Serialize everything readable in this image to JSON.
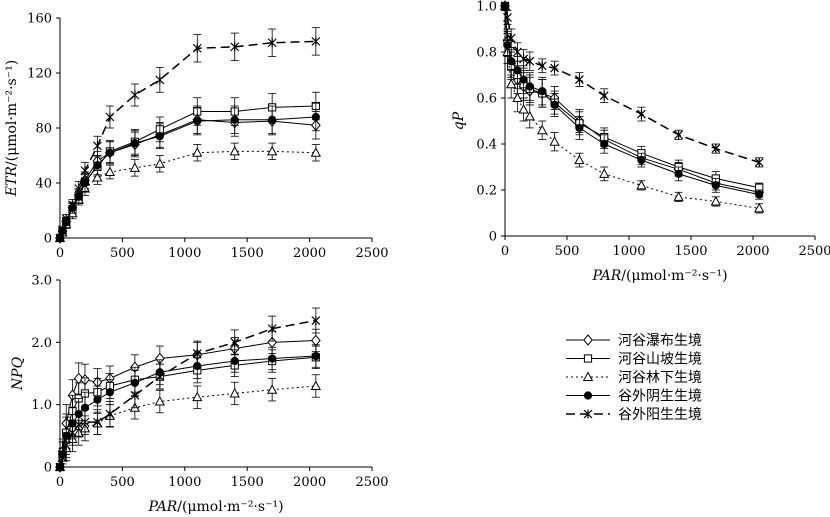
{
  "legend": {
    "items": [
      {
        "label": "河谷瀑布生境",
        "marker": "diamond-open",
        "dash": "solid"
      },
      {
        "label": "河谷山坡生境",
        "marker": "square-open",
        "dash": "solid"
      },
      {
        "label": "河谷林下生境",
        "marker": "triangle-open",
        "dash": "dotted"
      },
      {
        "label": "谷外阴生生境",
        "marker": "circle-filled",
        "dash": "solid"
      },
      {
        "label": "谷外阳生生境",
        "marker": "star",
        "dash": "dashed"
      }
    ]
  },
  "chart_data": [
    {
      "id": "etr",
      "type": "line",
      "title": "",
      "ylabel_italic": "ETR",
      "ylabel_unit": "/(μmol·m⁻²·s⁻¹)",
      "xlabel": "",
      "xlim": [
        0,
        2500
      ],
      "ylim": [
        0,
        160
      ],
      "xticks": [
        0,
        500,
        1000,
        1500,
        2000,
        2500
      ],
      "yticks": [
        0,
        40,
        80,
        120,
        160
      ],
      "ytick_labels": [
        "0",
        "40",
        "80",
        "120",
        "160"
      ],
      "x": [
        0,
        20,
        50,
        100,
        150,
        200,
        300,
        400,
        600,
        800,
        1100,
        1400,
        1700,
        2050
      ],
      "series": [
        {
          "name": "河谷瀑布生境",
          "values": [
            0,
            5,
            12,
            22,
            31,
            42,
            56,
            62,
            68,
            75,
            86,
            84,
            85,
            82
          ],
          "err": [
            1,
            2,
            3,
            4,
            5,
            6,
            7,
            8,
            9,
            9,
            10,
            10,
            10,
            10
          ]
        },
        {
          "name": "河谷山坡生境",
          "values": [
            0,
            5,
            12,
            21,
            30,
            41,
            52,
            63,
            70,
            79,
            92,
            92,
            95,
            96
          ],
          "err": [
            1,
            2,
            3,
            4,
            5,
            6,
            7,
            8,
            9,
            9,
            10,
            10,
            10,
            10
          ]
        },
        {
          "name": "河谷林下生境",
          "values": [
            0,
            4,
            10,
            18,
            28,
            36,
            44,
            48,
            51,
            54,
            62,
            63,
            63,
            62
          ],
          "err": [
            1,
            2,
            3,
            4,
            4,
            5,
            5,
            5,
            6,
            6,
            6,
            6,
            6,
            6
          ]
        },
        {
          "name": "谷外阴生生境",
          "values": [
            0,
            5,
            12,
            22,
            30,
            40,
            53,
            62,
            69,
            74,
            85,
            86,
            86,
            88
          ],
          "err": [
            1,
            2,
            3,
            4,
            5,
            6,
            7,
            8,
            9,
            9,
            10,
            10,
            10,
            10
          ]
        },
        {
          "name": "谷外阳生生境",
          "values": [
            0,
            6,
            14,
            24,
            36,
            49,
            67,
            88,
            104,
            115,
            138,
            139,
            142,
            143
          ],
          "err": [
            1,
            2,
            3,
            4,
            5,
            6,
            7,
            8,
            8,
            9,
            10,
            10,
            10,
            10
          ]
        }
      ]
    },
    {
      "id": "qp",
      "type": "line",
      "title": "",
      "ylabel_italic": "qP",
      "ylabel_unit": "",
      "xlabel_italic": "PAR",
      "xlabel_unit": "/(μmol·m⁻²·s⁻¹)",
      "xlim": [
        0,
        2500
      ],
      "ylim": [
        0,
        1.0
      ],
      "xticks": [
        0,
        500,
        1000,
        1500,
        2000,
        2500
      ],
      "yticks": [
        0,
        0.2,
        0.4,
        0.6,
        0.8,
        1.0
      ],
      "ytick_labels": [
        "0",
        "0.2",
        "0.4",
        "0.6",
        "0.8",
        "1.0"
      ],
      "x": [
        0,
        20,
        50,
        100,
        150,
        200,
        300,
        400,
        600,
        800,
        1100,
        1400,
        1700,
        2050
      ],
      "series": [
        {
          "name": "河谷瀑布生境",
          "values": [
            1.0,
            0.85,
            0.75,
            0.68,
            0.65,
            0.63,
            0.62,
            0.6,
            0.5,
            0.42,
            0.34,
            0.29,
            0.23,
            0.19
          ],
          "err": [
            0.02,
            0.05,
            0.06,
            0.06,
            0.06,
            0.06,
            0.06,
            0.05,
            0.05,
            0.04,
            0.03,
            0.03,
            0.03,
            0.02
          ]
        },
        {
          "name": "河谷山坡生境",
          "values": [
            1.0,
            0.84,
            0.74,
            0.7,
            0.66,
            0.64,
            0.62,
            0.58,
            0.49,
            0.43,
            0.36,
            0.3,
            0.25,
            0.21
          ],
          "err": [
            0.02,
            0.05,
            0.06,
            0.06,
            0.06,
            0.06,
            0.06,
            0.05,
            0.05,
            0.04,
            0.03,
            0.03,
            0.03,
            0.02
          ]
        },
        {
          "name": "河谷林下生境",
          "values": [
            1.0,
            0.8,
            0.66,
            0.6,
            0.55,
            0.52,
            0.46,
            0.41,
            0.33,
            0.27,
            0.22,
            0.17,
            0.15,
            0.12
          ],
          "err": [
            0.02,
            0.05,
            0.06,
            0.06,
            0.05,
            0.05,
            0.04,
            0.04,
            0.03,
            0.03,
            0.02,
            0.02,
            0.02,
            0.02
          ]
        },
        {
          "name": "谷外阴生生境",
          "values": [
            1.0,
            0.83,
            0.76,
            0.72,
            0.68,
            0.65,
            0.63,
            0.57,
            0.47,
            0.4,
            0.33,
            0.27,
            0.22,
            0.18
          ],
          "err": [
            0.02,
            0.05,
            0.06,
            0.06,
            0.06,
            0.06,
            0.06,
            0.05,
            0.05,
            0.04,
            0.03,
            0.03,
            0.03,
            0.02
          ]
        },
        {
          "name": "谷外阳生生境",
          "values": [
            1.0,
            0.95,
            0.86,
            0.8,
            0.77,
            0.76,
            0.74,
            0.73,
            0.68,
            0.61,
            0.53,
            0.44,
            0.38,
            0.32
          ],
          "err": [
            0.02,
            0.03,
            0.04,
            0.04,
            0.04,
            0.04,
            0.03,
            0.03,
            0.03,
            0.03,
            0.03,
            0.02,
            0.02,
            0.02
          ]
        }
      ]
    },
    {
      "id": "npq",
      "type": "line",
      "title": "",
      "ylabel_italic": "NPQ",
      "ylabel_unit": "",
      "xlabel_italic": "PAR",
      "xlabel_unit": "/(μmol·m⁻²·s⁻¹)",
      "xlim": [
        0,
        2500
      ],
      "ylim": [
        0,
        3.0
      ],
      "xticks": [
        0,
        500,
        1000,
        1500,
        2000,
        2500
      ],
      "yticks": [
        0,
        1.0,
        2.0,
        3.0
      ],
      "ytick_labels": [
        "0",
        "1.0",
        "2.0",
        "3.0"
      ],
      "x": [
        0,
        20,
        50,
        100,
        150,
        200,
        300,
        400,
        600,
        800,
        1100,
        1400,
        1700,
        2050
      ],
      "series": [
        {
          "name": "河谷瀑布生境",
          "values": [
            0,
            0.25,
            0.7,
            1.15,
            1.42,
            1.4,
            1.36,
            1.42,
            1.6,
            1.74,
            1.8,
            1.9,
            2.0,
            2.03
          ],
          "err": [
            0.05,
            0.2,
            0.3,
            0.25,
            0.25,
            0.25,
            0.22,
            0.2,
            0.2,
            0.2,
            0.2,
            0.18,
            0.18,
            0.18
          ]
        },
        {
          "name": "河谷山坡生境",
          "values": [
            0,
            0.2,
            0.55,
            0.9,
            1.1,
            1.18,
            1.2,
            1.3,
            1.4,
            1.45,
            1.55,
            1.63,
            1.7,
            1.76
          ],
          "err": [
            0.05,
            0.2,
            0.3,
            0.25,
            0.25,
            0.25,
            0.22,
            0.2,
            0.2,
            0.2,
            0.2,
            0.18,
            0.18,
            0.18
          ]
        },
        {
          "name": "河谷林下生境",
          "values": [
            0,
            0.15,
            0.3,
            0.45,
            0.55,
            0.62,
            0.7,
            0.82,
            0.95,
            1.05,
            1.12,
            1.18,
            1.24,
            1.3
          ],
          "err": [
            0.05,
            0.15,
            0.2,
            0.2,
            0.2,
            0.2,
            0.18,
            0.18,
            0.18,
            0.18,
            0.18,
            0.18,
            0.18,
            0.18
          ]
        },
        {
          "name": "谷外阴生生境",
          "values": [
            0,
            0.2,
            0.5,
            0.7,
            0.85,
            0.95,
            1.08,
            1.2,
            1.35,
            1.52,
            1.62,
            1.7,
            1.74,
            1.78
          ],
          "err": [
            0.05,
            0.2,
            0.3,
            0.25,
            0.25,
            0.25,
            0.22,
            0.2,
            0.2,
            0.2,
            0.2,
            0.18,
            0.18,
            0.18
          ]
        },
        {
          "name": "谷外阳生生境",
          "values": [
            0,
            0.15,
            0.35,
            0.55,
            0.68,
            0.72,
            0.72,
            0.85,
            1.15,
            1.45,
            1.82,
            2.0,
            2.22,
            2.35
          ],
          "err": [
            0.05,
            0.15,
            0.2,
            0.2,
            0.2,
            0.2,
            0.2,
            0.2,
            0.2,
            0.2,
            0.2,
            0.2,
            0.2,
            0.2
          ]
        }
      ]
    }
  ]
}
